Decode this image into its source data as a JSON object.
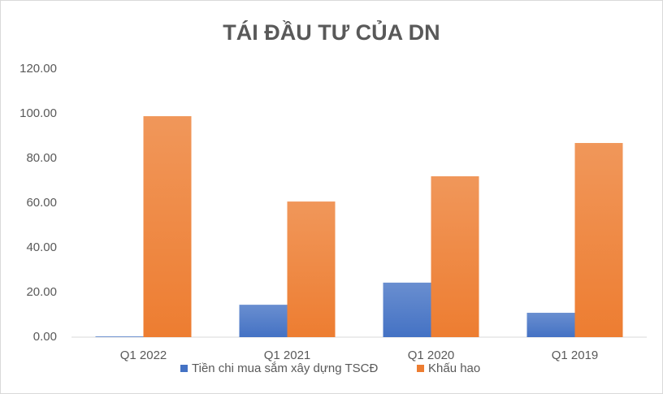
{
  "chart_data": {
    "type": "bar",
    "title": "TÁI ĐẦU TƯ CỦA DN",
    "categories": [
      "Q1 2022",
      "Q1 2021",
      "Q1 2020",
      "Q1 2019"
    ],
    "series": [
      {
        "name": "Tiền chi mua sắm xây dựng TSCĐ",
        "color": "#4472c4",
        "values": [
          0.3,
          14.5,
          24.4,
          10.9
        ]
      },
      {
        "name": "Khấu hao",
        "color": "#ed7d31",
        "values": [
          98.9,
          60.7,
          72.0,
          86.9
        ]
      }
    ],
    "ylim": [
      0,
      120
    ],
    "yticks": [
      {
        "value": 0,
        "label": "0.00"
      },
      {
        "value": 20,
        "label": "20.00"
      },
      {
        "value": 40,
        "label": "40.00"
      },
      {
        "value": 60,
        "label": "60.00"
      },
      {
        "value": 80,
        "label": "80.00"
      },
      {
        "value": 100,
        "label": "100.00"
      },
      {
        "value": 120,
        "label": "120.00"
      }
    ],
    "grid": false,
    "legend": "bottom"
  }
}
